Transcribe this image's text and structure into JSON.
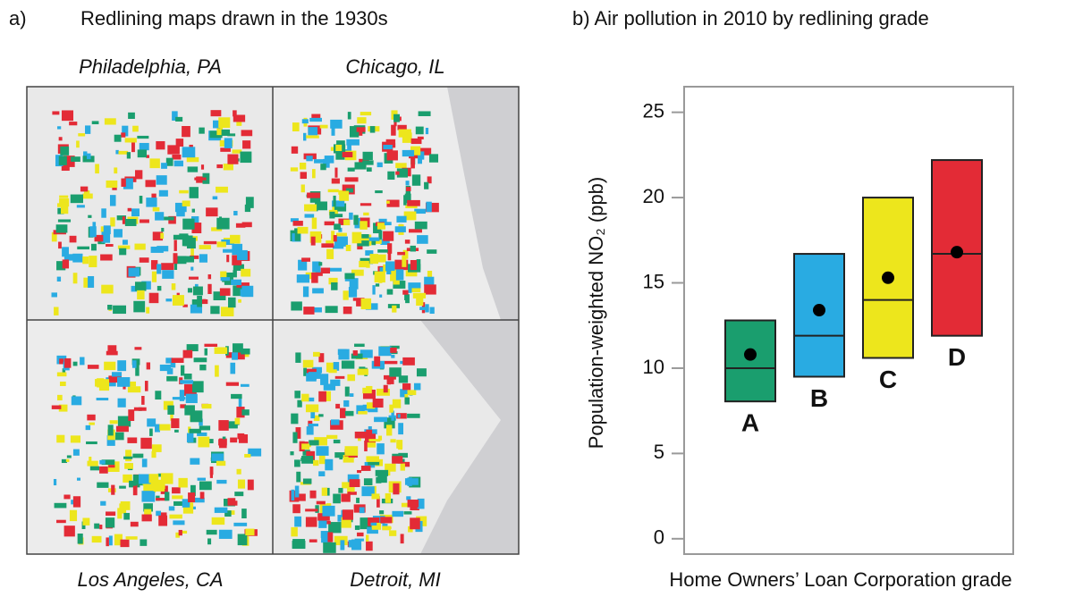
{
  "panel_a": {
    "label": "a)",
    "title": "Redlining maps drawn in the 1930s",
    "maps": [
      "Philadelphia, PA",
      "Chicago, IL",
      "Los Angeles, CA",
      "Detroit, MI"
    ]
  },
  "chart_data": {
    "type": "box",
    "title": "b) Air pollution in 2010 by redlining grade",
    "ylabel": "Population-weighted NO₂ (ppb)",
    "xlabel": "Home Owners’ Loan Corporation grade",
    "categories": [
      "A",
      "B",
      "C",
      "D"
    ],
    "colors": [
      "#1a9e6e",
      "#29abe2",
      "#ede61c",
      "#e32b36"
    ],
    "low": [
      8.05,
      9.5,
      10.6,
      11.9
    ],
    "high": [
      12.8,
      16.7,
      20.0,
      22.2
    ],
    "median": [
      10.0,
      11.9,
      14.0,
      16.7
    ],
    "mean": [
      10.8,
      13.4,
      15.3,
      16.8
    ],
    "ylim": [
      -0.9,
      26.5
    ],
    "yticks": [
      0,
      5,
      10,
      15,
      20,
      25
    ]
  }
}
